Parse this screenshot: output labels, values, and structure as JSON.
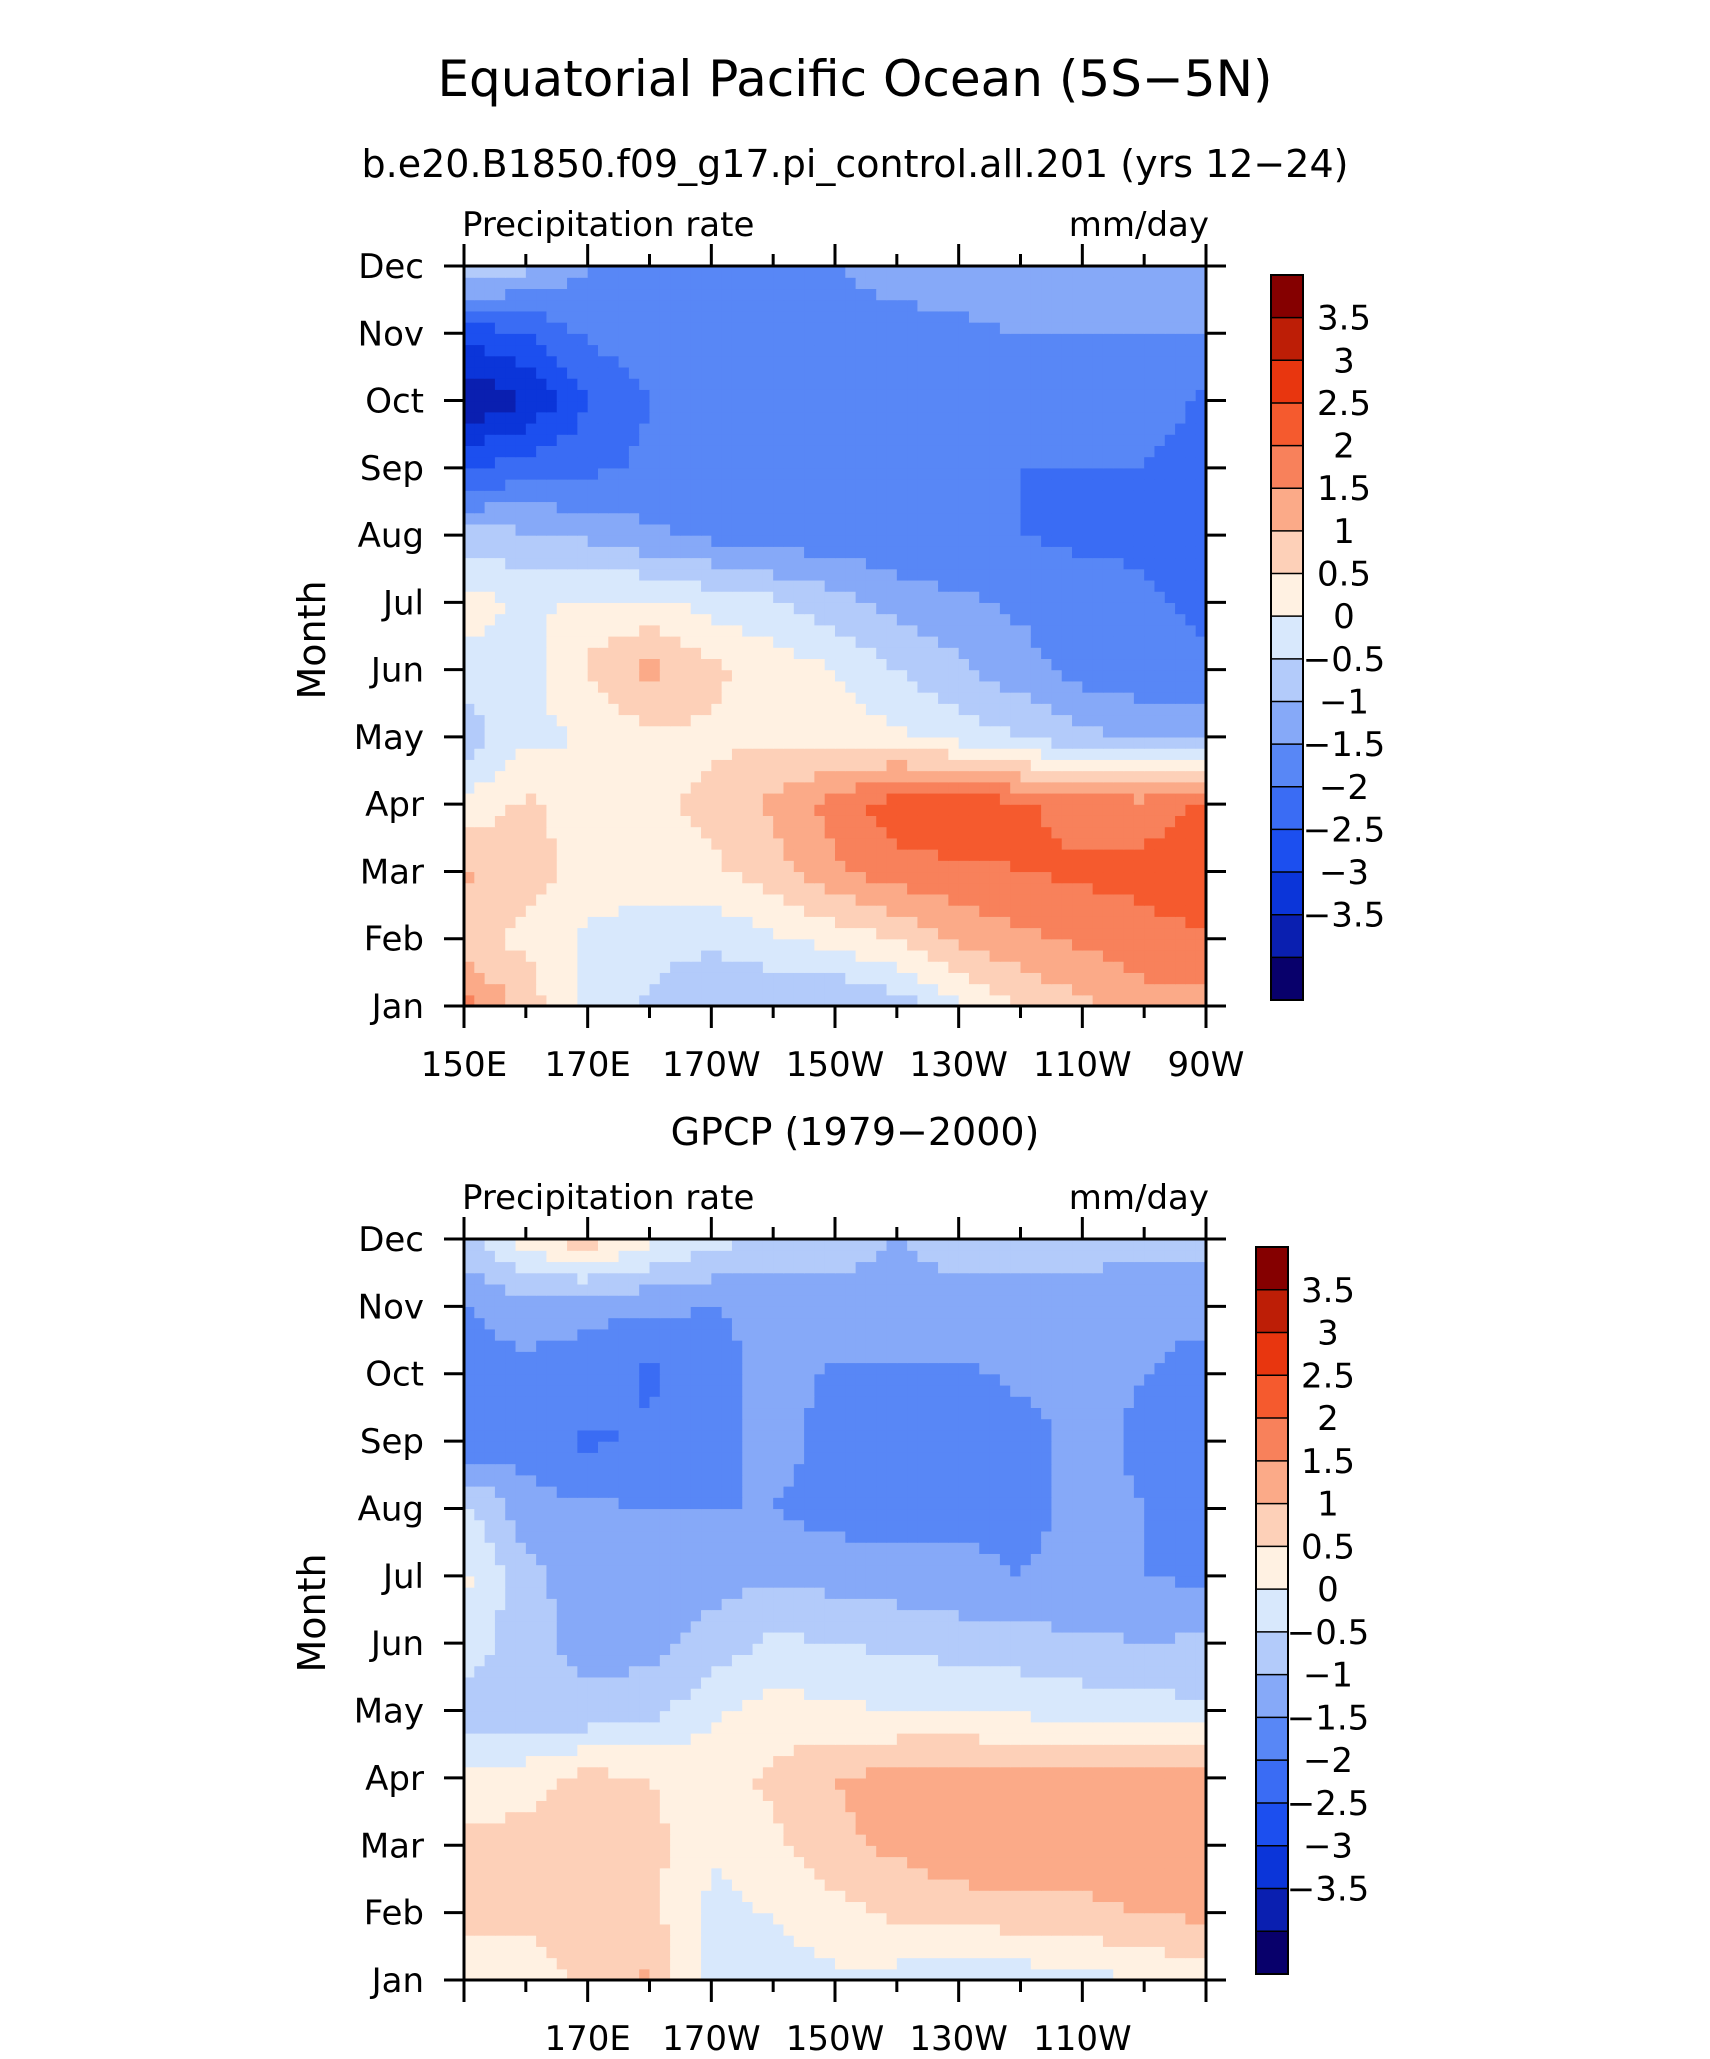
{
  "figure": {
    "title": "Equatorial Pacific Ocean (5S−5N)"
  },
  "colorbar_levels": [
    "3.5",
    "3",
    "2.5",
    "2",
    "1.5",
    "1",
    "0.5",
    "0",
    "−0.5",
    "−1",
    "−1.5",
    "−2",
    "−2.5",
    "−3",
    "−3.5"
  ],
  "colors": {
    "scale": [
      "#08006b",
      "#0a1fb0",
      "#0b35d9",
      "#1c4fef",
      "#3a6cf4",
      "#5887f6",
      "#86a9f8",
      "#b3cbfa",
      "#d8e8fc",
      "#fff1e2",
      "#fdd0b8",
      "#fbaa88",
      "#f8815b",
      "#f55a2e",
      "#e8360f",
      "#bd1e06",
      "#850000"
    ]
  },
  "chart_data": [
    {
      "type": "heatmap",
      "subtitle": "b.e20.B1850.f09_g17.pi_control.all.201 (yrs 12−24)",
      "variable": "Precipitation rate",
      "units": "mm/day",
      "ylabel": "Month",
      "x_tick_labels": [
        "150E",
        "170E",
        "170W",
        "150W",
        "130W",
        "110W",
        "90W"
      ],
      "y_tick_labels": [
        "Jan",
        "Feb",
        "Mar",
        "Apr",
        "May",
        "Jun",
        "Jul",
        "Aug",
        "Sep",
        "Oct",
        "Nov",
        "Dec"
      ],
      "xlim": [
        "150E",
        "90W"
      ],
      "ylim": [
        "Jan",
        "Dec"
      ],
      "x": [
        "150E",
        "160E",
        "170E",
        "180",
        "170W",
        "160W",
        "150W",
        "140W",
        "130W",
        "120W",
        "110W",
        "100W",
        "90W"
      ],
      "months": [
        "Jan",
        "Feb",
        "Mar",
        "Apr",
        "May",
        "Jun",
        "Jul",
        "Aug",
        "Sep",
        "Oct",
        "Nov",
        "Dec"
      ],
      "values": [
        [
          2.2,
          1.3,
          0.3,
          -0.1,
          -0.4,
          -0.5,
          -0.6,
          -0.3,
          0.4,
          1.0,
          1.4,
          1.8,
          1.8
        ],
        [
          1.1,
          0.9,
          0.4,
          0.2,
          0.1,
          0.4,
          0.7,
          1.0,
          1.6,
          1.9,
          2.1,
          2.3,
          2.4
        ],
        [
          1.6,
          1.2,
          0.8,
          0.8,
          0.9,
          1.3,
          1.9,
          2.3,
          2.4,
          2.5,
          2.6,
          2.7,
          3.0
        ],
        [
          0.6,
          1.1,
          0.8,
          0.9,
          1.1,
          1.6,
          2.2,
          2.8,
          2.9,
          2.6,
          2.3,
          2.2,
          2.6
        ],
        [
          -0.3,
          0.4,
          0.5,
          0.9,
          0.9,
          0.9,
          0.8,
          0.6,
          0.3,
          0.0,
          -0.4,
          -0.5,
          -0.6
        ],
        [
          0.2,
          0.3,
          1.1,
          1.7,
          1.1,
          0.8,
          0.5,
          0.0,
          -0.4,
          -0.8,
          -1.2,
          -1.4,
          -1.4
        ],
        [
          0.8,
          0.4,
          0.6,
          0.6,
          0.3,
          0.1,
          -0.3,
          -0.7,
          -0.9,
          -1.1,
          -1.3,
          -1.4,
          -1.6
        ],
        [
          -0.3,
          -0.4,
          -0.6,
          -0.9,
          -1.1,
          -1.3,
          -1.3,
          -1.4,
          -1.5,
          -1.5,
          -1.6,
          -1.6,
          -2.0
        ],
        [
          -2.0,
          -1.8,
          -1.6,
          -1.4,
          -1.3,
          -1.3,
          -1.3,
          -1.4,
          -1.4,
          -1.5,
          -1.5,
          -1.5,
          -1.8
        ],
        [
          -3.5,
          -3.0,
          -2.0,
          -1.5,
          -1.4,
          -1.3,
          -1.3,
          -1.3,
          -1.3,
          -1.2,
          -1.2,
          -1.2,
          -1.6
        ],
        [
          -2.3,
          -2.0,
          -1.4,
          -1.3,
          -1.3,
          -1.2,
          -1.1,
          -1.1,
          -1.1,
          -1.0,
          -1.0,
          -1.0,
          -1.0
        ],
        [
          0.1,
          -0.4,
          -1.0,
          -1.2,
          -1.2,
          -1.2,
          -1.0,
          -0.9,
          -0.8,
          -0.7,
          -0.6,
          -0.6,
          -0.5
        ]
      ],
      "color_levels": [
        -3.5,
        -3,
        -2.5,
        -2,
        -1.5,
        -1,
        -0.5,
        0,
        0.5,
        1,
        1.5,
        2,
        2.5,
        3,
        3.5
      ]
    },
    {
      "type": "heatmap",
      "subtitle": "GPCP (1979−2000)",
      "variable": "Precipitation rate",
      "units": "mm/day",
      "ylabel": "Month",
      "x_tick_labels": [
        "",
        "170E",
        "170W",
        "150W",
        "130W",
        "110W",
        ""
      ],
      "y_tick_labels": [
        "Jan",
        "Feb",
        "Mar",
        "Apr",
        "May",
        "Jun",
        "Jul",
        "Aug",
        "Sep",
        "Oct",
        "Nov",
        "Dec"
      ],
      "xlim": [
        "150E",
        "90W"
      ],
      "ylim": [
        "Jan",
        "Dec"
      ],
      "x": [
        "150E",
        "160E",
        "170E",
        "180",
        "170W",
        "160W",
        "150W",
        "140W",
        "130W",
        "120W",
        "110W",
        "100W",
        "90W"
      ],
      "months": [
        "Jan",
        "Feb",
        "Mar",
        "Apr",
        "May",
        "Jun",
        "Jul",
        "Aug",
        "Sep",
        "Oct",
        "Nov",
        "Dec"
      ],
      "values": [
        [
          0.5,
          0.8,
          1.1,
          1.6,
          0.2,
          0.3,
          0.4,
          0.3,
          0.2,
          0.2,
          0.3,
          0.5,
          0.8
        ],
        [
          1.2,
          1.1,
          1.3,
          1.1,
          0.4,
          0.5,
          0.8,
          1.1,
          1.2,
          1.3,
          1.4,
          1.5,
          1.6
        ],
        [
          1.1,
          1.2,
          1.0,
          1.2,
          0.5,
          0.9,
          1.4,
          1.6,
          1.9,
          1.9,
          1.7,
          1.9,
          1.8
        ],
        [
          0.7,
          0.8,
          1.2,
          1.0,
          0.8,
          1.1,
          1.5,
          1.7,
          1.8,
          1.7,
          1.8,
          1.9,
          1.7
        ],
        [
          -0.3,
          -0.4,
          -0.4,
          -0.2,
          0.4,
          0.7,
          0.6,
          0.5,
          0.5,
          0.4,
          0.3,
          0.2,
          0.1
        ],
        [
          0.4,
          -0.4,
          -0.6,
          -0.7,
          -0.3,
          0.1,
          0.0,
          -0.1,
          -0.2,
          -0.3,
          -0.4,
          -0.5,
          -0.4
        ],
        [
          0.6,
          -0.3,
          -0.8,
          -0.8,
          -0.7,
          -0.6,
          -0.7,
          -0.8,
          -0.9,
          -1.0,
          -0.9,
          -1.0,
          -1.1
        ],
        [
          0.2,
          -0.8,
          -0.9,
          -1.0,
          -1.0,
          -1.0,
          -1.2,
          -1.2,
          -1.1,
          -1.1,
          -0.9,
          -1.0,
          -1.2
        ],
        [
          -1.4,
          -1.2,
          -1.6,
          -1.4,
          -1.2,
          -0.8,
          -1.2,
          -1.3,
          -1.2,
          -1.2,
          -0.8,
          -1.1,
          -1.2
        ],
        [
          -1.2,
          -1.1,
          -1.2,
          -1.6,
          -1.2,
          -0.8,
          -1.1,
          -1.1,
          -1.1,
          -0.9,
          -0.9,
          -1.0,
          -1.3
        ],
        [
          -1.0,
          -0.8,
          -0.9,
          -0.9,
          -1.0,
          -0.9,
          -0.6,
          -0.6,
          -0.6,
          -0.6,
          -0.6,
          -0.7,
          -0.8
        ],
        [
          -0.2,
          0.8,
          1.3,
          0.6,
          0.2,
          -0.2,
          -0.4,
          -0.5,
          -0.4,
          -0.4,
          -0.4,
          -0.4,
          -0.4
        ]
      ],
      "color_levels": [
        -3.5,
        -3,
        -2.5,
        -2,
        -1.5,
        -1,
        -0.5,
        0,
        0.5,
        1,
        1.5,
        2,
        2.5,
        3,
        3.5
      ]
    }
  ]
}
